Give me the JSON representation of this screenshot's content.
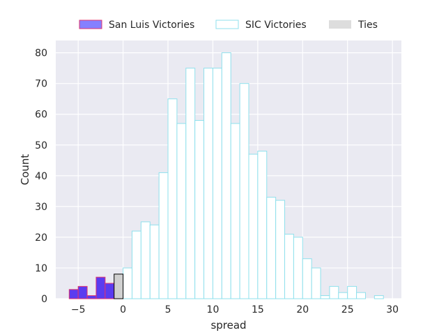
{
  "chart_data": {
    "type": "bar",
    "subtype": "histogram",
    "xlabel": "spread",
    "ylabel": "Count",
    "xlim": [
      -7.5,
      31.0
    ],
    "ylim": [
      0,
      84
    ],
    "xticks": [
      -5,
      0,
      5,
      10,
      15,
      20,
      25,
      30
    ],
    "yticks": [
      0,
      10,
      20,
      30,
      40,
      50,
      60,
      70,
      80
    ],
    "grid": true,
    "legend_position": "top",
    "bin_width": 1,
    "series": [
      {
        "name": "San Luis Victories",
        "fill": "#5a3cf0",
        "edge": "#e0336e",
        "legend_fill": "#8580ff",
        "bins": [
          {
            "x": -5.5,
            "y": 3
          },
          {
            "x": -4.5,
            "y": 4
          },
          {
            "x": -3.5,
            "y": 1
          },
          {
            "x": -2.5,
            "y": 7
          },
          {
            "x": -1.5,
            "y": 5
          }
        ]
      },
      {
        "name": "SIC Victories",
        "fill": "#ffffff",
        "edge": "#8fe0ec",
        "legend_fill": "#ffffff",
        "bins": [
          {
            "x": 0.5,
            "y": 10
          },
          {
            "x": 1.5,
            "y": 22
          },
          {
            "x": 2.5,
            "y": 25
          },
          {
            "x": 3.5,
            "y": 24
          },
          {
            "x": 4.5,
            "y": 41
          },
          {
            "x": 5.5,
            "y": 65
          },
          {
            "x": 6.5,
            "y": 57
          },
          {
            "x": 7.5,
            "y": 75
          },
          {
            "x": 8.5,
            "y": 58
          },
          {
            "x": 9.5,
            "y": 75
          },
          {
            "x": 10.5,
            "y": 75
          },
          {
            "x": 11.5,
            "y": 80
          },
          {
            "x": 12.5,
            "y": 57
          },
          {
            "x": 13.5,
            "y": 70
          },
          {
            "x": 14.5,
            "y": 47
          },
          {
            "x": 15.5,
            "y": 48
          },
          {
            "x": 16.5,
            "y": 33
          },
          {
            "x": 17.5,
            "y": 32
          },
          {
            "x": 18.5,
            "y": 21
          },
          {
            "x": 19.5,
            "y": 20
          },
          {
            "x": 20.5,
            "y": 13
          },
          {
            "x": 21.5,
            "y": 10
          },
          {
            "x": 22.5,
            "y": 1
          },
          {
            "x": 23.5,
            "y": 4
          },
          {
            "x": 24.5,
            "y": 2
          },
          {
            "x": 25.5,
            "y": 4
          },
          {
            "x": 26.5,
            "y": 2
          },
          {
            "x": 27.5,
            "y": 0
          },
          {
            "x": 28.5,
            "y": 1
          }
        ]
      },
      {
        "name": "Ties",
        "fill": "#d0d0d0",
        "edge": "#000000",
        "legend_fill": "#dddddd",
        "bins": [
          {
            "x": -0.5,
            "y": 8
          }
        ]
      }
    ]
  }
}
